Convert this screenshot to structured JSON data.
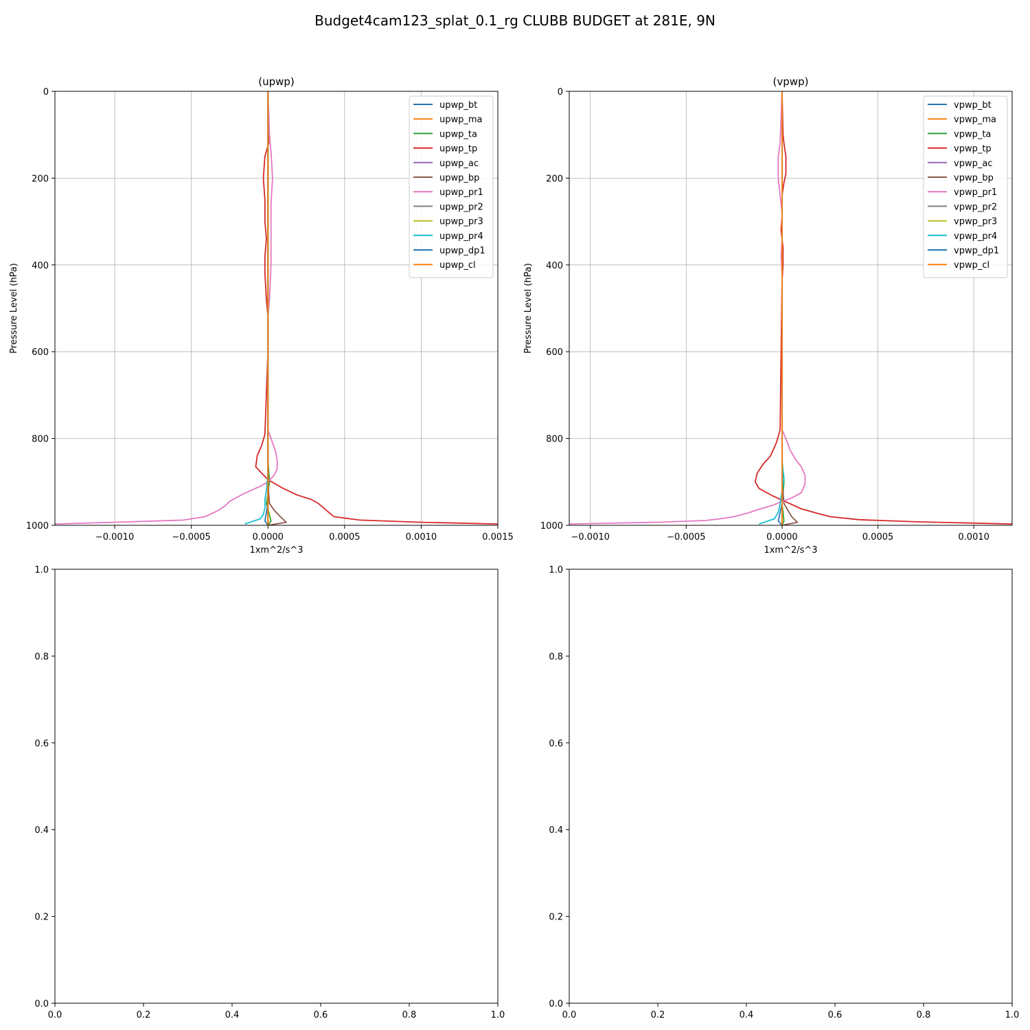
{
  "figure": {
    "title": "Budget4cam123_splat_0.1_rg CLUBB BUDGET at 281E, 9N"
  },
  "chart_data": [
    {
      "type": "line",
      "title": "(upwp)",
      "xlabel": "1xm^2/s^3",
      "ylabel": "Pressure Level (hPa)",
      "xlim": [
        -0.00139,
        0.0015
      ],
      "ylim": [
        1000,
        0
      ],
      "y_inverted": true,
      "xticks": [
        -0.001,
        -0.0005,
        0.0,
        0.0005,
        0.001,
        0.0015
      ],
      "xtick_labels": [
        "−0.0010",
        "−0.0005",
        "0.0000",
        "0.0005",
        "0.0010",
        "0.0015"
      ],
      "yticks": [
        0,
        200,
        400,
        600,
        800,
        1000
      ],
      "ytick_labels": [
        "0",
        "200",
        "400",
        "600",
        "800",
        "1000"
      ],
      "grid": true,
      "legend_position": "upper right",
      "series": [
        {
          "name": "upwp_bt",
          "color": "#1f77b4",
          "x": [
            0,
            0,
            0,
            0,
            0
          ],
          "y": [
            0,
            400,
            800,
            990,
            1000
          ]
        },
        {
          "name": "upwp_ma",
          "color": "#ff7f0e",
          "x": [
            0,
            0,
            0,
            0,
            0
          ],
          "y": [
            0,
            400,
            800,
            990,
            1000
          ]
        },
        {
          "name": "upwp_ta",
          "color": "#2ca02c",
          "x": [
            0,
            0,
            0,
            1e-05,
            -1e-05,
            2e-05,
            0
          ],
          "y": [
            0,
            500,
            850,
            900,
            950,
            990,
            1000
          ]
        },
        {
          "name": "upwp_tp",
          "color": "#d62728",
          "x": [
            0,
            5e-06,
            5e-06,
            -2e-05,
            -3e-05,
            -2e-05,
            -2e-05,
            -1e-05,
            -2e-05,
            -2e-05,
            -1e-05,
            0,
            0,
            -2e-05,
            -4e-05,
            -7e-05,
            -8e-05,
            -4e-05,
            0,
            0.0001,
            0.00019,
            0.00028,
            0.00033,
            0.00038,
            0.00043,
            0.0006,
            0.001,
            0.0015
          ],
          "y": [
            0,
            100,
            120,
            150,
            200,
            250,
            300,
            340,
            380,
            420,
            480,
            520,
            600,
            790,
            815,
            840,
            865,
            880,
            895,
            915,
            930,
            940,
            950,
            965,
            980,
            988,
            993,
            997
          ]
        },
        {
          "name": "upwp_ac",
          "color": "#9467bd",
          "x": [
            0,
            0,
            0,
            0
          ],
          "y": [
            0,
            500,
            900,
            1000
          ]
        },
        {
          "name": "upwp_bp",
          "color": "#8c564b",
          "x": [
            0,
            0,
            1e-05,
            4e-05,
            8e-05,
            0.00012,
            0
          ],
          "y": [
            0,
            900,
            950,
            965,
            980,
            993,
            1000
          ]
        },
        {
          "name": "upwp_pr1",
          "color": "#e377c2",
          "x": [
            0,
            1e-05,
            2e-05,
            3e-05,
            2e-05,
            2e-05,
            2e-05,
            1e-05,
            0,
            0,
            2e-05,
            5e-05,
            6e-05,
            6e-05,
            4e-05,
            0,
            -5e-05,
            -0.0001,
            -0.00015,
            -0.0002,
            -0.00025,
            -0.00028,
            -0.00033,
            -0.00041,
            -0.00055,
            -0.0009,
            -0.00139
          ],
          "y": [
            0,
            100,
            140,
            200,
            260,
            300,
            400,
            480,
            520,
            780,
            800,
            830,
            850,
            870,
            885,
            900,
            910,
            918,
            926,
            935,
            945,
            955,
            967,
            980,
            988,
            992,
            997
          ]
        },
        {
          "name": "upwp_pr2",
          "color": "#7f7f7f",
          "x": [
            0,
            0,
            0,
            0
          ],
          "y": [
            0,
            500,
            900,
            1000
          ]
        },
        {
          "name": "upwp_pr3",
          "color": "#bcbd22",
          "x": [
            0,
            0,
            0,
            0
          ],
          "y": [
            0,
            500,
            900,
            1000
          ]
        },
        {
          "name": "upwp_pr4",
          "color": "#17becf",
          "x": [
            0,
            0,
            0,
            -1e-05,
            -2e-05,
            -2e-05,
            -3e-05,
            -5e-05,
            -0.00015
          ],
          "y": [
            0,
            800,
            880,
            920,
            940,
            960,
            975,
            985,
            997
          ]
        },
        {
          "name": "upwp_dp1",
          "color": "#1f77b4",
          "x": [
            0,
            0,
            0,
            -2e-05,
            0
          ],
          "y": [
            0,
            500,
            950,
            990,
            1000
          ]
        },
        {
          "name": "upwp_cl",
          "color": "#ff7f0e",
          "x": [
            0,
            0,
            0,
            0
          ],
          "y": [
            0,
            500,
            990,
            1000
          ]
        }
      ]
    },
    {
      "type": "line",
      "title": "(vpwp)",
      "xlabel": "1xm^2/s^3",
      "ylabel": "Pressure Level (hPa)",
      "xlim": [
        -0.00111,
        0.0012
      ],
      "ylim": [
        1000,
        0
      ],
      "y_inverted": true,
      "xticks": [
        -0.001,
        -0.0005,
        0.0,
        0.0005,
        0.001
      ],
      "xtick_labels": [
        "−0.0010",
        "−0.0005",
        "0.0000",
        "0.0005",
        "0.0010"
      ],
      "yticks": [
        0,
        200,
        400,
        600,
        800,
        1000
      ],
      "ytick_labels": [
        "0",
        "200",
        "400",
        "600",
        "800",
        "1000"
      ],
      "grid": true,
      "legend_position": "upper right",
      "series": [
        {
          "name": "vpwp_bt",
          "color": "#1f77b4",
          "x": [
            0,
            0,
            0,
            0
          ],
          "y": [
            0,
            500,
            990,
            1000
          ]
        },
        {
          "name": "vpwp_ma",
          "color": "#ff7f0e",
          "x": [
            0,
            0,
            0,
            0
          ],
          "y": [
            0,
            500,
            990,
            1000
          ]
        },
        {
          "name": "vpwp_ta",
          "color": "#2ca02c",
          "x": [
            0,
            0,
            0,
            1e-05,
            0,
            1e-05,
            0
          ],
          "y": [
            0,
            500,
            850,
            900,
            950,
            990,
            1000
          ]
        },
        {
          "name": "vpwp_tp",
          "color": "#d62728",
          "x": [
            0,
            5e-06,
            1e-05,
            2e-05,
            2e-05,
            1e-05,
            0,
            0,
            -5e-06,
            0,
            5e-06,
            5e-06,
            0,
            -1e-05,
            -3e-05,
            -6e-05,
            -0.0001,
            -0.00013,
            -0.00014,
            -0.00012,
            -5e-05,
            3e-05,
            0.0001,
            0.00018,
            0.00025,
            0.0004,
            0.0007,
            0.0012
          ],
          "y": [
            0,
            100,
            120,
            150,
            190,
            210,
            240,
            290,
            320,
            340,
            360,
            400,
            440,
            780,
            810,
            840,
            860,
            880,
            900,
            915,
            932,
            948,
            962,
            972,
            980,
            987,
            992,
            997
          ]
        },
        {
          "name": "vpwp_ac",
          "color": "#9467bd",
          "x": [
            0,
            0,
            0,
            0
          ],
          "y": [
            0,
            500,
            900,
            1000
          ]
        },
        {
          "name": "vpwp_bp",
          "color": "#8c564b",
          "x": [
            0,
            0,
            1e-05,
            3e-05,
            5e-05,
            8e-05,
            0
          ],
          "y": [
            0,
            900,
            950,
            965,
            980,
            993,
            1000
          ]
        },
        {
          "name": "vpwp_pr1",
          "color": "#e377c2",
          "x": [
            0,
            -1e-05,
            -2e-05,
            -2e-05,
            -1e-05,
            0,
            0,
            -5e-06,
            0,
            0,
            2e-05,
            4e-05,
            7e-05,
            0.0001,
            0.00012,
            0.00012,
            0.0001,
            5e-05,
            0,
            -5e-05,
            -0.00012,
            -0.00018,
            -0.00025,
            -0.00032,
            -0.0004,
            -0.00065,
            -0.00111
          ],
          "y": [
            0,
            120,
            150,
            200,
            240,
            280,
            340,
            380,
            420,
            780,
            800,
            825,
            848,
            865,
            885,
            905,
            925,
            937,
            945,
            954,
            963,
            972,
            980,
            985,
            989,
            993,
            997
          ]
        },
        {
          "name": "vpwp_pr2",
          "color": "#7f7f7f",
          "x": [
            0,
            0,
            0,
            0
          ],
          "y": [
            0,
            500,
            900,
            1000
          ]
        },
        {
          "name": "vpwp_pr3",
          "color": "#bcbd22",
          "x": [
            0,
            0,
            0,
            0
          ],
          "y": [
            0,
            500,
            900,
            1000
          ]
        },
        {
          "name": "vpwp_pr4",
          "color": "#17becf",
          "x": [
            0,
            0,
            0,
            1e-05,
            0,
            -1e-05,
            -2e-05,
            -4e-05,
            -0.00012
          ],
          "y": [
            0,
            800,
            860,
            890,
            920,
            950,
            970,
            985,
            997
          ]
        },
        {
          "name": "vpwp_dp1",
          "color": "#1f77b4",
          "x": [
            0,
            0,
            0,
            -2e-05,
            0
          ],
          "y": [
            0,
            500,
            950,
            990,
            1000
          ]
        },
        {
          "name": "vpwp_cl",
          "color": "#ff7f0e",
          "x": [
            0,
            0,
            0,
            0
          ],
          "y": [
            0,
            500,
            990,
            1000
          ]
        }
      ]
    },
    {
      "type": "line",
      "title": "",
      "xlim": [
        0,
        1
      ],
      "ylim": [
        0,
        1
      ],
      "xticks": [
        0,
        0.2,
        0.4,
        0.6,
        0.8,
        1.0
      ],
      "xtick_labels": [
        "0.0",
        "0.2",
        "0.4",
        "0.6",
        "0.8",
        "1.0"
      ],
      "yticks": [
        0,
        0.2,
        0.4,
        0.6,
        0.8,
        1.0
      ],
      "ytick_labels": [
        "0.0",
        "0.2",
        "0.4",
        "0.6",
        "0.8",
        "1.0"
      ],
      "grid": false,
      "series": []
    },
    {
      "type": "line",
      "title": "",
      "xlim": [
        0,
        1
      ],
      "ylim": [
        0,
        1
      ],
      "xticks": [
        0,
        0.2,
        0.4,
        0.6,
        0.8,
        1.0
      ],
      "xtick_labels": [
        "0.0",
        "0.2",
        "0.4",
        "0.6",
        "0.8",
        "1.0"
      ],
      "yticks": [
        0,
        0.2,
        0.4,
        0.6,
        0.8,
        1.0
      ],
      "ytick_labels": [
        "0.0",
        "0.2",
        "0.4",
        "0.6",
        "0.8",
        "1.0"
      ],
      "grid": false,
      "series": []
    }
  ]
}
